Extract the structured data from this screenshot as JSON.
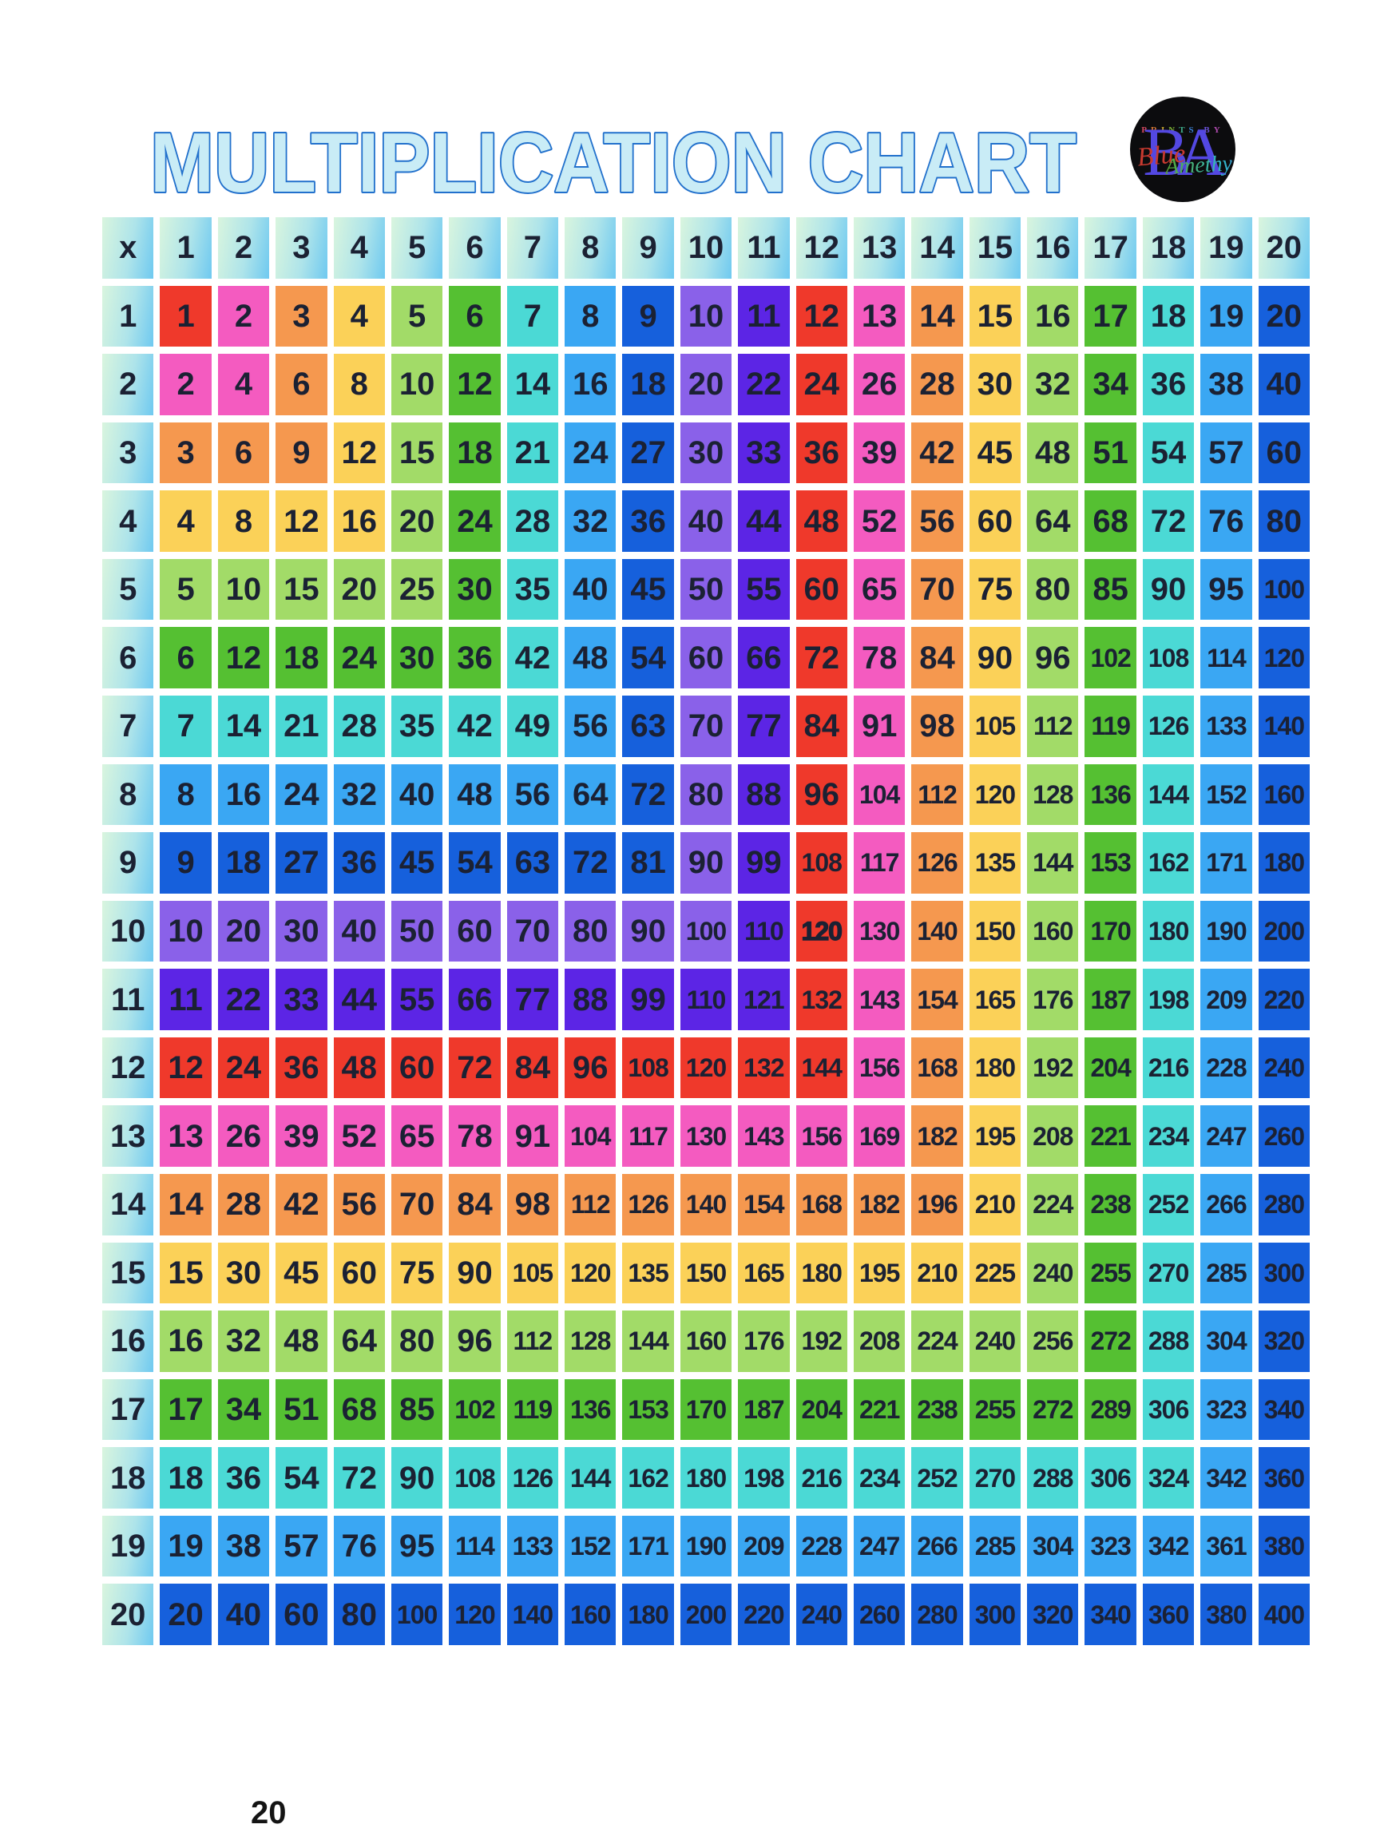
{
  "title": "MULTIPLICATION CHART",
  "page_number": "20",
  "logo": {
    "prints_by": "PRINTS BY",
    "initials": "BA",
    "script_first": "Blue",
    "script_second": "Amethyst"
  },
  "colors": {
    "cycle": [
      "#EF392B",
      "#F45BC0",
      "#F5984F",
      "#FBD158",
      "#A2DB68",
      "#55C032",
      "#4BD9D5",
      "#3AA7F3",
      "#1660DC",
      "#8A61E9",
      "#5C25E5"
    ],
    "header_gradient_start": "#D9F5DE",
    "header_gradient_end": "#6FC9F0",
    "cell_text": "#1B2133",
    "title_fill": "#C9ECF6",
    "title_stroke": "#2170CC",
    "logo_rainbow": [
      "#D1485F",
      "#D87A33",
      "#C9A92E",
      "#7FB335",
      "#3FAE8C",
      "#3B82D6",
      "#6A52D8",
      "#B04BB0"
    ],
    "background": "#FFFFFF"
  },
  "table": {
    "corner_label": "x",
    "column_headers": [
      "1",
      "2",
      "3",
      "4",
      "5",
      "6",
      "7",
      "8",
      "9",
      "10",
      "11",
      "12",
      "13",
      "14",
      "15",
      "16",
      "17",
      "18",
      "19",
      "20"
    ],
    "row_headers": [
      "1",
      "2",
      "3",
      "4",
      "5",
      "6",
      "7",
      "8",
      "9",
      "10",
      "11",
      "12",
      "13",
      "14",
      "15",
      "16",
      "17",
      "18",
      "19",
      "20"
    ],
    "rows": [
      [
        1,
        2,
        3,
        4,
        5,
        6,
        7,
        8,
        9,
        10,
        11,
        12,
        13,
        14,
        15,
        16,
        17,
        18,
        19,
        20
      ],
      [
        2,
        4,
        6,
        8,
        10,
        12,
        14,
        16,
        18,
        20,
        22,
        24,
        26,
        28,
        30,
        32,
        34,
        36,
        38,
        40
      ],
      [
        3,
        6,
        9,
        12,
        15,
        18,
        21,
        24,
        27,
        30,
        33,
        36,
        39,
        42,
        45,
        48,
        51,
        54,
        57,
        60
      ],
      [
        4,
        8,
        12,
        16,
        20,
        24,
        28,
        32,
        36,
        40,
        44,
        48,
        52,
        56,
        60,
        64,
        68,
        72,
        76,
        80
      ],
      [
        5,
        10,
        15,
        20,
        25,
        30,
        35,
        40,
        45,
        50,
        55,
        60,
        65,
        70,
        75,
        80,
        85,
        90,
        95,
        100
      ],
      [
        6,
        12,
        18,
        24,
        30,
        36,
        42,
        48,
        54,
        60,
        66,
        72,
        78,
        84,
        90,
        96,
        102,
        108,
        114,
        120
      ],
      [
        7,
        14,
        21,
        28,
        35,
        42,
        49,
        56,
        63,
        70,
        77,
        84,
        91,
        98,
        105,
        112,
        119,
        126,
        133,
        140
      ],
      [
        8,
        16,
        24,
        32,
        40,
        48,
        56,
        64,
        72,
        80,
        88,
        96,
        104,
        112,
        120,
        128,
        136,
        144,
        152,
        160
      ],
      [
        9,
        18,
        27,
        36,
        45,
        54,
        63,
        72,
        81,
        90,
        99,
        108,
        117,
        126,
        135,
        144,
        153,
        162,
        171,
        180
      ],
      [
        10,
        20,
        30,
        40,
        50,
        60,
        70,
        80,
        90,
        100,
        110,
        120,
        130,
        140,
        150,
        160,
        170,
        180,
        190,
        200
      ],
      [
        11,
        22,
        33,
        44,
        55,
        66,
        77,
        88,
        99,
        110,
        121,
        132,
        143,
        154,
        165,
        176,
        187,
        198,
        209,
        220
      ],
      [
        12,
        24,
        36,
        48,
        60,
        72,
        84,
        96,
        108,
        120,
        132,
        144,
        156,
        168,
        180,
        192,
        204,
        216,
        228,
        240
      ],
      [
        13,
        26,
        39,
        52,
        65,
        78,
        91,
        104,
        117,
        130,
        143,
        156,
        169,
        182,
        195,
        208,
        221,
        234,
        247,
        260
      ],
      [
        14,
        28,
        42,
        56,
        70,
        84,
        98,
        112,
        126,
        140,
        154,
        168,
        182,
        196,
        210,
        224,
        238,
        252,
        266,
        280
      ],
      [
        15,
        30,
        45,
        60,
        75,
        90,
        105,
        120,
        135,
        150,
        165,
        180,
        195,
        210,
        225,
        240,
        255,
        270,
        285,
        300
      ],
      [
        16,
        32,
        48,
        64,
        80,
        96,
        112,
        128,
        144,
        160,
        176,
        192,
        208,
        224,
        240,
        256,
        272,
        288,
        304,
        320
      ],
      [
        17,
        34,
        51,
        68,
        85,
        102,
        119,
        136,
        153,
        170,
        187,
        204,
        221,
        238,
        255,
        272,
        289,
        306,
        323,
        340
      ],
      [
        18,
        36,
        54,
        72,
        90,
        108,
        126,
        144,
        162,
        180,
        198,
        216,
        234,
        252,
        270,
        288,
        306,
        324,
        342,
        360
      ],
      [
        19,
        38,
        57,
        76,
        95,
        114,
        133,
        152,
        171,
        190,
        209,
        228,
        247,
        266,
        285,
        304,
        323,
        342,
        361,
        380
      ],
      [
        20,
        40,
        60,
        80,
        100,
        120,
        140,
        160,
        180,
        200,
        220,
        240,
        260,
        280,
        300,
        320,
        340,
        360,
        380,
        400
      ]
    ],
    "highlight": {
      "row": 10,
      "col": 12
    }
  }
}
